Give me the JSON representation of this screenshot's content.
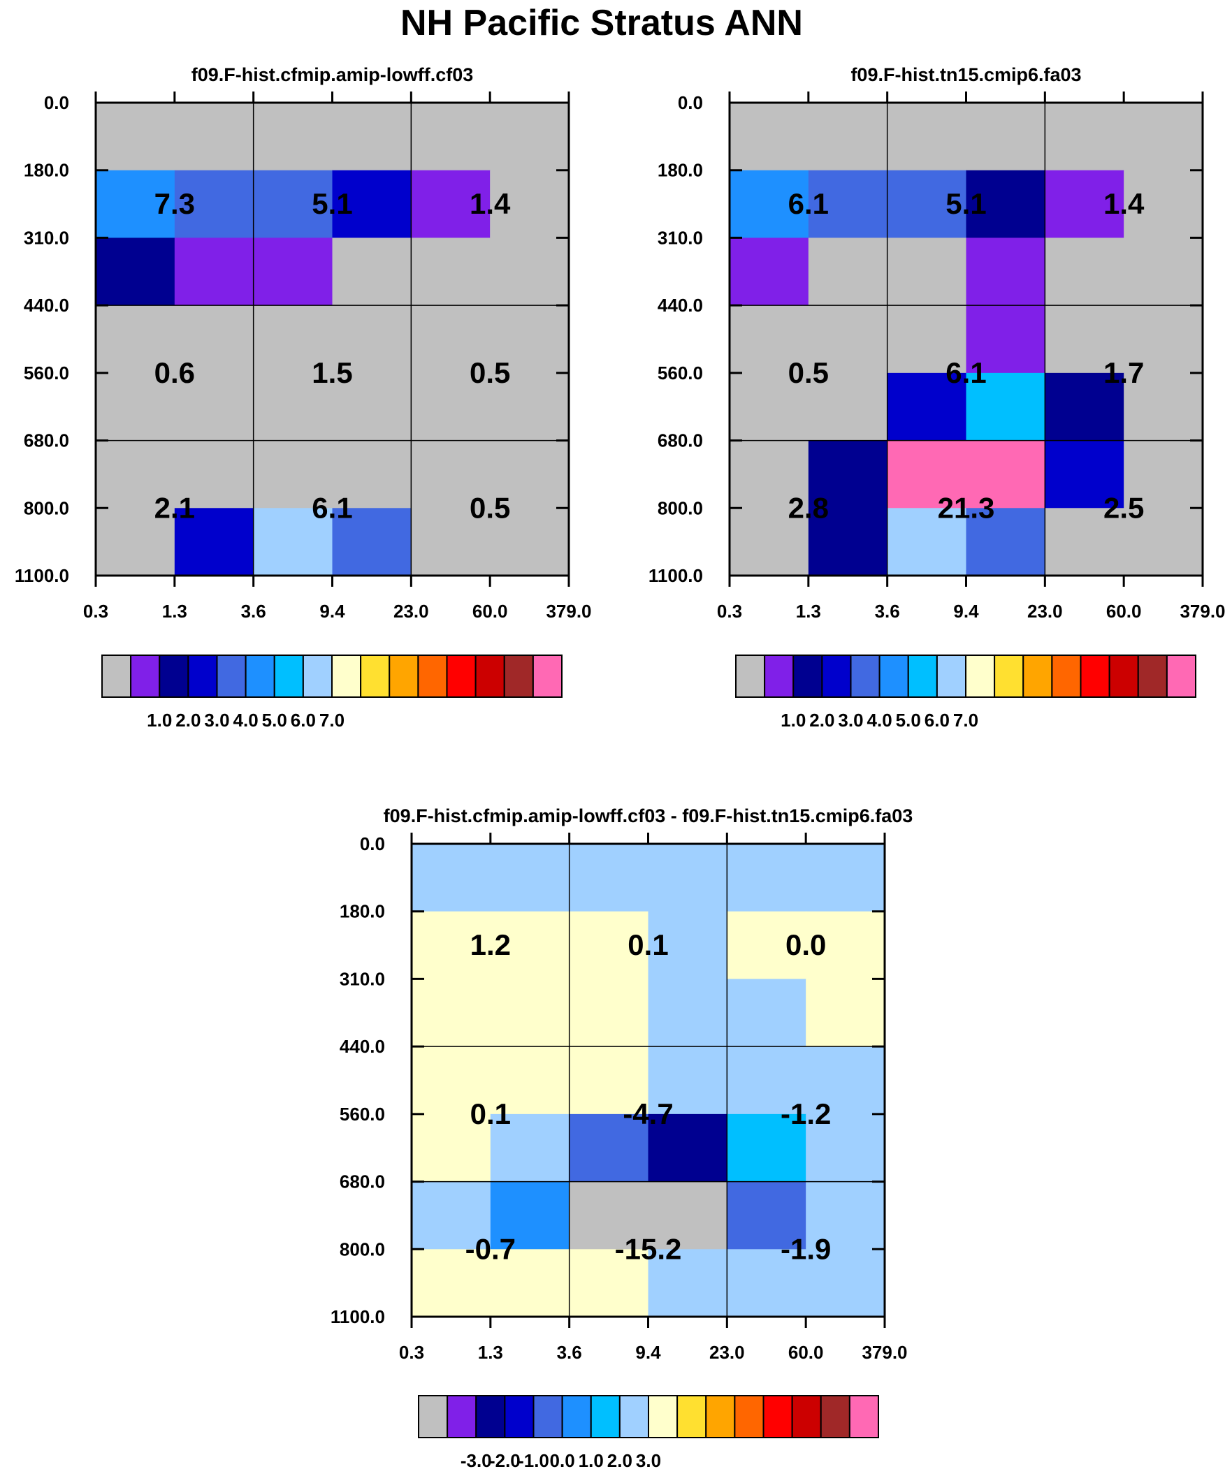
{
  "figure": {
    "title": "NH Pacific Stratus ANN"
  },
  "colors": {
    "palette": [
      "#c0c0c0",
      "#8020e8",
      "#000090",
      "#0000cc",
      "#4169e1",
      "#1e90ff",
      "#00bfff",
      "#a0d0ff",
      "#ffffcc",
      "#ffe030",
      "#ffa500",
      "#ff6600",
      "#ff0000",
      "#cc0000",
      "#a02828",
      "#ff69b4"
    ]
  },
  "chart_data": [
    {
      "type": "heatmap",
      "title": "f09.F-hist.cfmip.amip-lowff.cf03",
      "xticks": [
        "0.3",
        "1.3",
        "3.6",
        "9.4",
        "23.0",
        "60.0",
        "379.0"
      ],
      "yticks": [
        "0.0",
        "180.0",
        "310.0",
        "440.0",
        "560.0",
        "680.0",
        "800.0",
        "1100.0"
      ],
      "cells": [
        [
          0,
          0,
          0,
          0,
          0,
          0
        ],
        [
          5,
          4,
          4,
          3,
          1,
          0
        ],
        [
          2,
          1,
          1,
          0,
          0,
          0
        ],
        [
          0,
          0,
          0,
          0,
          0,
          0
        ],
        [
          0,
          0,
          0,
          0,
          0,
          0
        ],
        [
          0,
          0,
          0,
          0,
          0,
          0
        ],
        [
          0,
          3,
          7,
          4,
          0,
          0
        ]
      ],
      "labels": [
        [
          "7.3",
          "5.1",
          "1.4"
        ],
        [
          "0.6",
          "1.5",
          "0.5"
        ],
        [
          "2.1",
          "6.1",
          "0.5"
        ]
      ],
      "colorbar": {
        "ticks": [
          "1.0",
          "2.0",
          "3.0",
          "4.0",
          "5.0",
          "6.0",
          "7.0"
        ]
      }
    },
    {
      "type": "heatmap",
      "title": "f09.F-hist.tn15.cmip6.fa03",
      "xticks": [
        "0.3",
        "1.3",
        "3.6",
        "9.4",
        "23.0",
        "60.0",
        "379.0"
      ],
      "yticks": [
        "0.0",
        "180.0",
        "310.0",
        "440.0",
        "560.0",
        "680.0",
        "800.0",
        "1100.0"
      ],
      "cells": [
        [
          0,
          0,
          0,
          0,
          0,
          0
        ],
        [
          5,
          4,
          4,
          2,
          1,
          0
        ],
        [
          1,
          0,
          0,
          1,
          0,
          0
        ],
        [
          0,
          0,
          0,
          1,
          0,
          0
        ],
        [
          0,
          0,
          3,
          6,
          2,
          0
        ],
        [
          0,
          2,
          15,
          15,
          3,
          0
        ],
        [
          0,
          2,
          7,
          4,
          0,
          0
        ]
      ],
      "labels": [
        [
          "6.1",
          "5.1",
          "1.4"
        ],
        [
          "0.5",
          "6.1",
          "1.7"
        ],
        [
          "2.8",
          "21.3",
          "2.5"
        ]
      ],
      "colorbar": {
        "ticks": [
          "1.0",
          "2.0",
          "3.0",
          "4.0",
          "5.0",
          "6.0",
          "7.0"
        ]
      }
    },
    {
      "type": "heatmap",
      "title": "f09.F-hist.cfmip.amip-lowff.cf03 - f09.F-hist.tn15.cmip6.fa03",
      "xticks": [
        "0.3",
        "1.3",
        "3.6",
        "9.4",
        "23.0",
        "60.0",
        "379.0"
      ],
      "yticks": [
        "0.0",
        "180.0",
        "310.0",
        "440.0",
        "560.0",
        "680.0",
        "800.0",
        "1100.0"
      ],
      "cells": [
        [
          7,
          7,
          7,
          7,
          7,
          7
        ],
        [
          8,
          8,
          8,
          7,
          8,
          8
        ],
        [
          8,
          8,
          8,
          7,
          7,
          8
        ],
        [
          8,
          8,
          8,
          7,
          7,
          7
        ],
        [
          8,
          7,
          4,
          2,
          6,
          7
        ],
        [
          7,
          5,
          0,
          0,
          4,
          7
        ],
        [
          8,
          8,
          8,
          7,
          7,
          7
        ]
      ],
      "labels": [
        [
          "1.2",
          "0.1",
          "0.0"
        ],
        [
          "0.1",
          "-4.7",
          "-1.2"
        ],
        [
          "-0.7",
          "-15.2",
          "-1.9"
        ]
      ],
      "colorbar": {
        "ticks": [
          "-3.0",
          "-2.0",
          "-1.0",
          "0.0",
          "1.0",
          "2.0",
          "3.0"
        ]
      }
    }
  ]
}
